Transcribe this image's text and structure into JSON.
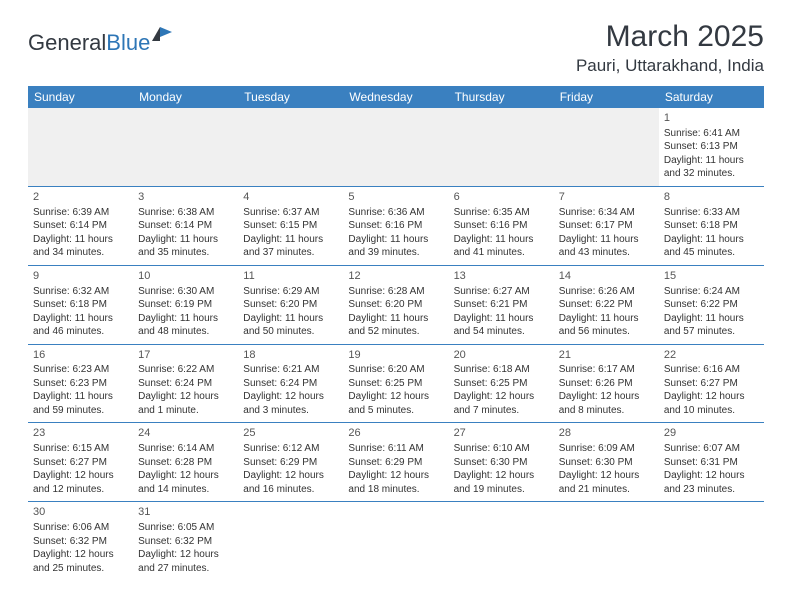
{
  "logo": {
    "part1": "General",
    "part2": "Blue"
  },
  "title": "March 2025",
  "location": "Pauri, Uttarakhand, India",
  "colors": {
    "header_bg": "#3a80c0",
    "header_fg": "#ffffff",
    "brand_blue": "#2e76b6",
    "text": "#333941",
    "cell_border": "#3a80c0",
    "blank_bg": "#f0f0f0"
  },
  "weekdays": [
    "Sunday",
    "Monday",
    "Tuesday",
    "Wednesday",
    "Thursday",
    "Friday",
    "Saturday"
  ],
  "weeks": [
    [
      null,
      null,
      null,
      null,
      null,
      null,
      {
        "n": "1",
        "sr": "Sunrise: 6:41 AM",
        "ss": "Sunset: 6:13 PM",
        "d1": "Daylight: 11 hours",
        "d2": "and 32 minutes."
      }
    ],
    [
      {
        "n": "2",
        "sr": "Sunrise: 6:39 AM",
        "ss": "Sunset: 6:14 PM",
        "d1": "Daylight: 11 hours",
        "d2": "and 34 minutes."
      },
      {
        "n": "3",
        "sr": "Sunrise: 6:38 AM",
        "ss": "Sunset: 6:14 PM",
        "d1": "Daylight: 11 hours",
        "d2": "and 35 minutes."
      },
      {
        "n": "4",
        "sr": "Sunrise: 6:37 AM",
        "ss": "Sunset: 6:15 PM",
        "d1": "Daylight: 11 hours",
        "d2": "and 37 minutes."
      },
      {
        "n": "5",
        "sr": "Sunrise: 6:36 AM",
        "ss": "Sunset: 6:16 PM",
        "d1": "Daylight: 11 hours",
        "d2": "and 39 minutes."
      },
      {
        "n": "6",
        "sr": "Sunrise: 6:35 AM",
        "ss": "Sunset: 6:16 PM",
        "d1": "Daylight: 11 hours",
        "d2": "and 41 minutes."
      },
      {
        "n": "7",
        "sr": "Sunrise: 6:34 AM",
        "ss": "Sunset: 6:17 PM",
        "d1": "Daylight: 11 hours",
        "d2": "and 43 minutes."
      },
      {
        "n": "8",
        "sr": "Sunrise: 6:33 AM",
        "ss": "Sunset: 6:18 PM",
        "d1": "Daylight: 11 hours",
        "d2": "and 45 minutes."
      }
    ],
    [
      {
        "n": "9",
        "sr": "Sunrise: 6:32 AM",
        "ss": "Sunset: 6:18 PM",
        "d1": "Daylight: 11 hours",
        "d2": "and 46 minutes."
      },
      {
        "n": "10",
        "sr": "Sunrise: 6:30 AM",
        "ss": "Sunset: 6:19 PM",
        "d1": "Daylight: 11 hours",
        "d2": "and 48 minutes."
      },
      {
        "n": "11",
        "sr": "Sunrise: 6:29 AM",
        "ss": "Sunset: 6:20 PM",
        "d1": "Daylight: 11 hours",
        "d2": "and 50 minutes."
      },
      {
        "n": "12",
        "sr": "Sunrise: 6:28 AM",
        "ss": "Sunset: 6:20 PM",
        "d1": "Daylight: 11 hours",
        "d2": "and 52 minutes."
      },
      {
        "n": "13",
        "sr": "Sunrise: 6:27 AM",
        "ss": "Sunset: 6:21 PM",
        "d1": "Daylight: 11 hours",
        "d2": "and 54 minutes."
      },
      {
        "n": "14",
        "sr": "Sunrise: 6:26 AM",
        "ss": "Sunset: 6:22 PM",
        "d1": "Daylight: 11 hours",
        "d2": "and 56 minutes."
      },
      {
        "n": "15",
        "sr": "Sunrise: 6:24 AM",
        "ss": "Sunset: 6:22 PM",
        "d1": "Daylight: 11 hours",
        "d2": "and 57 minutes."
      }
    ],
    [
      {
        "n": "16",
        "sr": "Sunrise: 6:23 AM",
        "ss": "Sunset: 6:23 PM",
        "d1": "Daylight: 11 hours",
        "d2": "and 59 minutes."
      },
      {
        "n": "17",
        "sr": "Sunrise: 6:22 AM",
        "ss": "Sunset: 6:24 PM",
        "d1": "Daylight: 12 hours",
        "d2": "and 1 minute."
      },
      {
        "n": "18",
        "sr": "Sunrise: 6:21 AM",
        "ss": "Sunset: 6:24 PM",
        "d1": "Daylight: 12 hours",
        "d2": "and 3 minutes."
      },
      {
        "n": "19",
        "sr": "Sunrise: 6:20 AM",
        "ss": "Sunset: 6:25 PM",
        "d1": "Daylight: 12 hours",
        "d2": "and 5 minutes."
      },
      {
        "n": "20",
        "sr": "Sunrise: 6:18 AM",
        "ss": "Sunset: 6:25 PM",
        "d1": "Daylight: 12 hours",
        "d2": "and 7 minutes."
      },
      {
        "n": "21",
        "sr": "Sunrise: 6:17 AM",
        "ss": "Sunset: 6:26 PM",
        "d1": "Daylight: 12 hours",
        "d2": "and 8 minutes."
      },
      {
        "n": "22",
        "sr": "Sunrise: 6:16 AM",
        "ss": "Sunset: 6:27 PM",
        "d1": "Daylight: 12 hours",
        "d2": "and 10 minutes."
      }
    ],
    [
      {
        "n": "23",
        "sr": "Sunrise: 6:15 AM",
        "ss": "Sunset: 6:27 PM",
        "d1": "Daylight: 12 hours",
        "d2": "and 12 minutes."
      },
      {
        "n": "24",
        "sr": "Sunrise: 6:14 AM",
        "ss": "Sunset: 6:28 PM",
        "d1": "Daylight: 12 hours",
        "d2": "and 14 minutes."
      },
      {
        "n": "25",
        "sr": "Sunrise: 6:12 AM",
        "ss": "Sunset: 6:29 PM",
        "d1": "Daylight: 12 hours",
        "d2": "and 16 minutes."
      },
      {
        "n": "26",
        "sr": "Sunrise: 6:11 AM",
        "ss": "Sunset: 6:29 PM",
        "d1": "Daylight: 12 hours",
        "d2": "and 18 minutes."
      },
      {
        "n": "27",
        "sr": "Sunrise: 6:10 AM",
        "ss": "Sunset: 6:30 PM",
        "d1": "Daylight: 12 hours",
        "d2": "and 19 minutes."
      },
      {
        "n": "28",
        "sr": "Sunrise: 6:09 AM",
        "ss": "Sunset: 6:30 PM",
        "d1": "Daylight: 12 hours",
        "d2": "and 21 minutes."
      },
      {
        "n": "29",
        "sr": "Sunrise: 6:07 AM",
        "ss": "Sunset: 6:31 PM",
        "d1": "Daylight: 12 hours",
        "d2": "and 23 minutes."
      }
    ],
    [
      {
        "n": "30",
        "sr": "Sunrise: 6:06 AM",
        "ss": "Sunset: 6:32 PM",
        "d1": "Daylight: 12 hours",
        "d2": "and 25 minutes."
      },
      {
        "n": "31",
        "sr": "Sunrise: 6:05 AM",
        "ss": "Sunset: 6:32 PM",
        "d1": "Daylight: 12 hours",
        "d2": "and 27 minutes."
      },
      null,
      null,
      null,
      null,
      null
    ]
  ]
}
